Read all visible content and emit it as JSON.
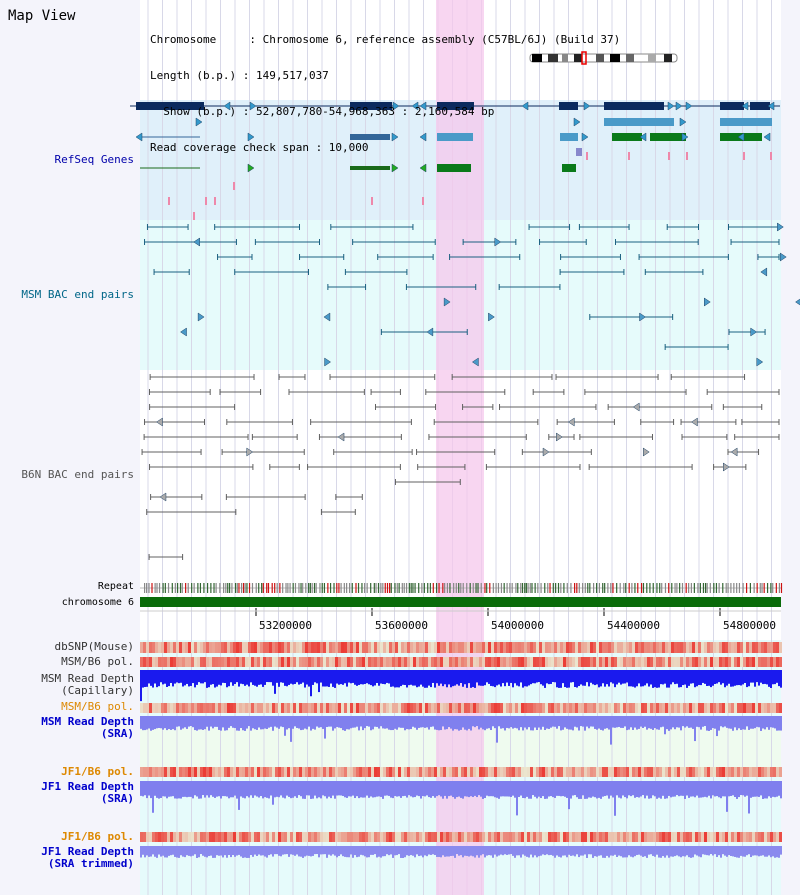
{
  "header": {
    "title": "Map View",
    "info_lines": [
      "Chromosome     : Chromosome 6, reference assembly (C57BL/6J) (Build 37)",
      "Length (b.p.) : 149,517,037",
      "  Show (b.p.) : 52,807,780-54,968,363 : 2,160,584 bp",
      "Read coverage check span : 10,000"
    ]
  },
  "tracks": {
    "refseq": {
      "label": "RefSeq Genes",
      "color": "#0000aa"
    },
    "msm_bac": {
      "label": "MSM BAC end pairs",
      "color": "#006688"
    },
    "b6n_bac": {
      "label": "B6N BAC end pairs",
      "color": "#555555"
    },
    "repeat": {
      "label": "Repeat",
      "color": "#000000"
    },
    "chromosome": {
      "label": "chromosome 6",
      "color": "#000000"
    },
    "dbsnp": {
      "label": "dbSNP(Mouse)",
      "color": "#333333"
    },
    "msm_b6_pol": {
      "label": "MSM/B6 pol.",
      "color": "#333333"
    },
    "msm_depth_cap": {
      "label": "MSM Read Depth\n(Capillary)",
      "color": "#333333"
    },
    "msm_b6_pol2": {
      "label": "MSM/B6 pol.",
      "color": "#dd8800"
    },
    "msm_depth_sra": {
      "label": "MSM Read Depth\n(SRA)",
      "color": "#0000cc"
    },
    "jf1_b6_pol": {
      "label": "JF1/B6 pol.",
      "color": "#dd8800"
    },
    "jf1_depth_sra": {
      "label": "JF1 Read Depth\n(SRA)",
      "color": "#0000cc"
    },
    "jf1_b6_pol2": {
      "label": "JF1/B6 pol.",
      "color": "#dd8800"
    },
    "jf1_depth_trim": {
      "label": "JF1 Read Depth\n(SRA trimmed)",
      "color": "#0000cc"
    }
  },
  "ruler": {
    "ticks": [
      "53200000",
      "53600000",
      "54000000",
      "54400000",
      "54800000"
    ]
  }
}
